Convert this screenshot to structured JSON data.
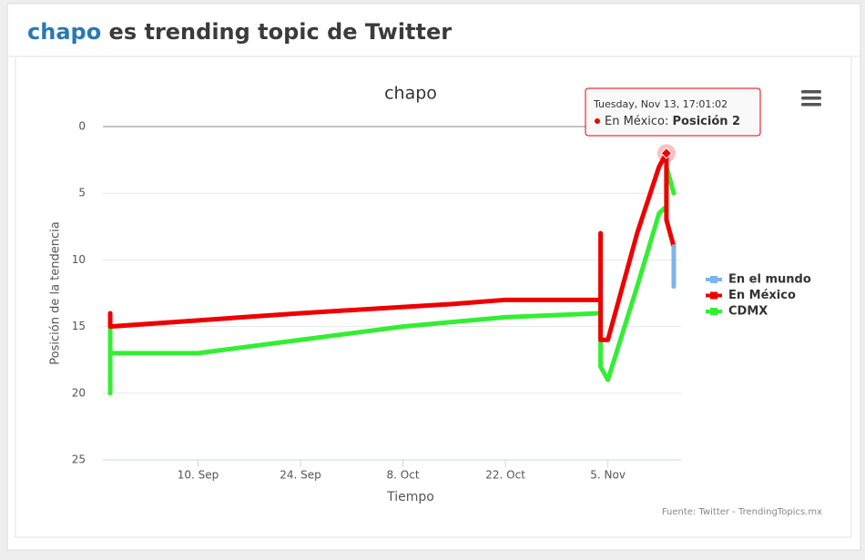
{
  "header": {
    "keyword": "chapo",
    "title_rest": "es trending topic de Twitter"
  },
  "chart_data": {
    "type": "line",
    "title": "chapo",
    "xlabel": "Tiempo",
    "ylabel": "Posición de la tendencia",
    "ylim": [
      0,
      25
    ],
    "yticks": [
      0,
      5,
      10,
      15,
      20,
      25
    ],
    "y_reversed": true,
    "grid": true,
    "xlim": [
      "08-28",
      "11-15"
    ],
    "xticks": [
      {
        "value": "09-10",
        "label": "10. Sep"
      },
      {
        "value": "09-24",
        "label": "24. Sep"
      },
      {
        "value": "10-08",
        "label": "8. Oct"
      },
      {
        "value": "10-22",
        "label": "22. Oct"
      },
      {
        "value": "11-05",
        "label": "5. Nov"
      }
    ],
    "legend": "right",
    "series": [
      {
        "name": "En el mundo",
        "color": "#7cb5ec",
        "x": [
          "11-14",
          "11-14"
        ],
        "values": [
          9,
          12
        ]
      },
      {
        "name": "En México",
        "color": "#ee0000",
        "x": [
          "08-29",
          "08-29",
          "09-24",
          "10-15",
          "10-22",
          "11-04",
          "11-04",
          "11-04",
          "11-05",
          "11-09",
          "11-12",
          "11-13",
          "11-13",
          "11-14"
        ],
        "values": [
          14,
          15,
          14,
          13.3,
          13,
          13,
          8,
          16,
          16,
          8,
          3,
          2,
          7,
          9
        ]
      },
      {
        "name": "CDMX",
        "color": "#33ee33",
        "x": [
          "08-29",
          "08-29",
          "08-29",
          "09-10",
          "09-24",
          "10-08",
          "10-22",
          "11-04",
          "11-04",
          "11-04",
          "11-05",
          "11-09",
          "11-12",
          "11-13",
          "11-13",
          "11-14"
        ],
        "values": [
          15,
          20,
          17,
          17,
          16,
          15,
          14.3,
          14,
          11,
          18,
          19,
          12,
          6.5,
          6,
          3,
          5
        ]
      }
    ],
    "tooltip": {
      "date": "Tuesday, Nov 13, 17:01:02",
      "label": "En México:",
      "value_label": "Posición 2"
    },
    "credits": "Fuente: Twitter - TrendingTopics.mx"
  }
}
